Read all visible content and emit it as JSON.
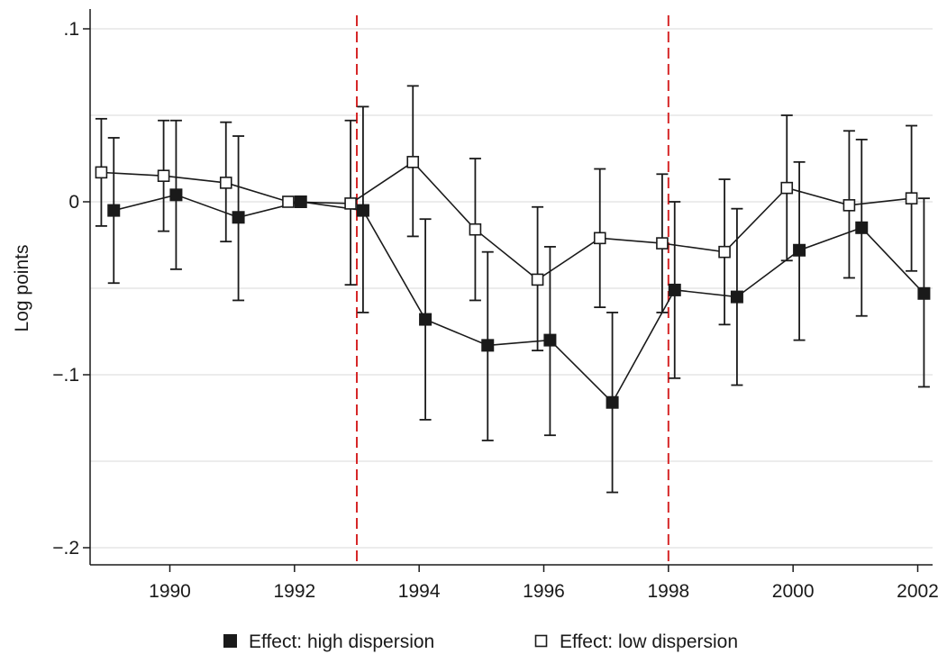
{
  "chart_data": {
    "type": "scatter",
    "title": "",
    "xlabel": "",
    "ylabel": "Log points",
    "xlim": [
      1988.7,
      2002.3
    ],
    "ylim": [
      -0.21,
      0.11
    ],
    "x_ticks": [
      1990,
      1992,
      1994,
      1996,
      1998,
      2000,
      2002
    ],
    "x_tick_labels": [
      "1990",
      "1992",
      "1994",
      "1996",
      "1998",
      "2000",
      "2002"
    ],
    "y_ticks": [
      -0.2,
      -0.1,
      0,
      0.1
    ],
    "y_tick_labels": [
      "−.2",
      "−.1",
      "0",
      ".1"
    ],
    "gridlines_y": [
      -0.2,
      -0.15,
      -0.1,
      -0.05,
      0,
      0.05,
      0.1
    ],
    "grid": true,
    "reference_lines_x": [
      1993,
      1998
    ],
    "reference_line_color": "#d62728",
    "legend_position": "bottom",
    "series": [
      {
        "name": "Effect: high dispersion",
        "marker": "filled-square",
        "color": "#1a1a1a",
        "x": [
          1989.1,
          1990.1,
          1991.1,
          1992.1,
          1993.1,
          1994.1,
          1995.1,
          1996.1,
          1997.1,
          1998.1,
          1999.1,
          2000.1,
          2001.1,
          2002.1
        ],
        "y": [
          -0.005,
          0.004,
          -0.009,
          0.0,
          -0.005,
          -0.068,
          -0.083,
          -0.08,
          -0.116,
          -0.051,
          -0.055,
          -0.028,
          -0.015,
          -0.053
        ],
        "ci_low": [
          -0.047,
          -0.039,
          -0.057,
          0.0,
          -0.064,
          -0.126,
          -0.138,
          -0.135,
          -0.168,
          -0.102,
          -0.106,
          -0.08,
          -0.066,
          -0.107
        ],
        "ci_high": [
          0.037,
          0.047,
          0.038,
          0.0,
          0.055,
          -0.01,
          -0.029,
          -0.026,
          -0.064,
          0.0,
          -0.004,
          0.023,
          0.036,
          0.002
        ]
      },
      {
        "name": "Effect: low dispersion",
        "marker": "hollow-square",
        "color": "#1a1a1a",
        "x": [
          1988.9,
          1989.9,
          1990.9,
          1991.9,
          1992.9,
          1993.9,
          1994.9,
          1995.9,
          1996.9,
          1997.9,
          1998.9,
          1999.9,
          2000.9,
          2001.9
        ],
        "y": [
          0.017,
          0.015,
          0.011,
          0.0,
          -0.001,
          0.023,
          -0.016,
          -0.045,
          -0.021,
          -0.024,
          -0.029,
          0.008,
          -0.002,
          0.002
        ],
        "ci_low": [
          -0.014,
          -0.017,
          -0.023,
          0.0,
          -0.048,
          -0.02,
          -0.057,
          -0.086,
          -0.061,
          -0.064,
          -0.071,
          -0.034,
          -0.044,
          -0.04
        ],
        "ci_high": [
          0.048,
          0.047,
          0.046,
          0.0,
          0.047,
          0.067,
          0.025,
          -0.003,
          0.019,
          0.016,
          0.013,
          0.05,
          0.041,
          0.044
        ]
      }
    ]
  },
  "colors": {
    "gridline": "#e6e6e6",
    "axis": "#1a1a1a",
    "marker": "#1a1a1a",
    "reference_line": "#d62728"
  }
}
